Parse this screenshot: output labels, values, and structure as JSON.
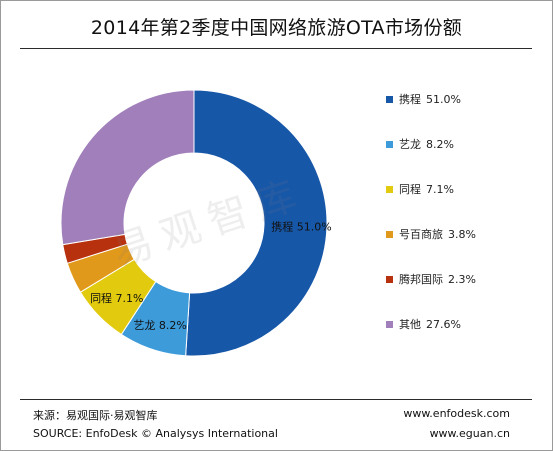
{
  "title": "2014年第2季度中国网络旅游OTA市场份额",
  "watermark_text": "易观智库",
  "chart_data": {
    "type": "pie",
    "style": "donut",
    "title": "2014年第2季度中国网络旅游OTA市场份额",
    "legend_position": "right",
    "slices": [
      {
        "name": "携程",
        "value": 51.0,
        "label": "51.0%",
        "color": "#1757A8"
      },
      {
        "name": "艺龙",
        "value": 8.2,
        "label": "8.2%",
        "color": "#3D9BDA"
      },
      {
        "name": "同程",
        "value": 7.1,
        "label": "7.1%",
        "color": "#E2CA0E"
      },
      {
        "name": "号百商旅",
        "value": 3.8,
        "label": "3.8%",
        "color": "#E1991B"
      },
      {
        "name": "腾邦国际",
        "value": 2.3,
        "label": "2.3%",
        "color": "#B8310F"
      },
      {
        "name": "其他",
        "value": 27.6,
        "label": "27.6%",
        "color": "#A07FBA"
      }
    ],
    "data_labels": [
      {
        "slice": 0,
        "text": "携程 51.0%"
      },
      {
        "slice": 1,
        "text": "艺龙 8.2%"
      },
      {
        "slice": 2,
        "text": "同程 7.1%"
      }
    ]
  },
  "footer": {
    "source_cn": "来源：易观国际·易观智库",
    "source_en": "SOURCE: EnfoDesk © Analysys International",
    "url1": "www.enfodesk.com",
    "url2": "www.eguan.cn"
  }
}
